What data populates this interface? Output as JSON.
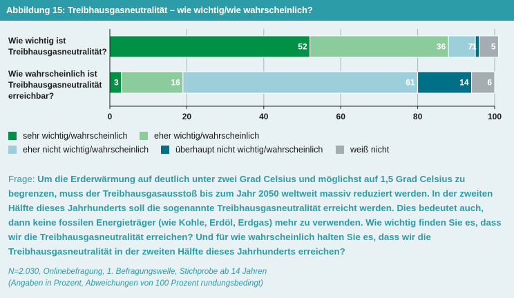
{
  "header": {
    "title": "Abbildung 15: Treibhausgasneutralität – wie wichtig/wie wahrscheinlich?"
  },
  "chart_data": {
    "type": "bar",
    "orientation": "horizontal",
    "stacked": true,
    "categories": [
      [
        "Wie wichtig ist",
        "Treibhausgasneutralität?"
      ],
      [
        "Wie wahrscheinlich ist",
        "Treibhausgasneutralität",
        "erreichbar?"
      ]
    ],
    "series": [
      {
        "name": "sehr wichtig/wahrscheinlich",
        "color": "#009147",
        "values": [
          52,
          3
        ]
      },
      {
        "name": "eher wichtig/wahrscheinlich",
        "color": "#8ccb9b",
        "values": [
          36,
          16
        ]
      },
      {
        "name": "eher nicht wichtig/wahrscheinlich",
        "color": "#9ccfda",
        "values": [
          7,
          61
        ]
      },
      {
        "name": "überhaupt nicht wichtig/wahrscheinlich",
        "color": "#006f88",
        "values": [
          1,
          14
        ]
      },
      {
        "name": "weiß nicht",
        "color": "#a4adb2",
        "values": [
          5,
          6
        ]
      }
    ],
    "xlim": [
      0,
      100
    ],
    "xticks": [
      0,
      20,
      40,
      60,
      80,
      100
    ],
    "grid": true,
    "legend_position": "bottom"
  },
  "question": {
    "prefix": "Frage:",
    "text": "Um die Erderwärmung auf deutlich unter zwei Grad Celsius und möglichst auf 1,5 Grad Celsius zu begrenzen, muss der Treibhausgasausstoß bis zum Jahr 2050 weltweit massiv reduziert werden. In der zweiten Hälfte dieses Jahrhunderts soll die sogenannte Treibhausgasneutralität erreicht werden. Dies bedeutet auch, dann keine fossilen Energieträger (wie Kohle, Erdöl, Erdgas) mehr zu verwenden. Wie wichtig finden Sie es, dass wir die Treibhausgasneutralität erreichen? Und für wie wahrscheinlich halten Sie es, dass wir die Treibhausgasneutralität in der zweiten Hälfte dieses Jahrhunderts erreichen?"
  },
  "footnote": {
    "line1": "N=2.030, Onlinebefragung, 1. Befragungswelle, Stichprobe ab 14 Jahren",
    "line2": "(Angaben in Prozent, Abweichungen von 100 Prozent rundungsbedingt)"
  }
}
